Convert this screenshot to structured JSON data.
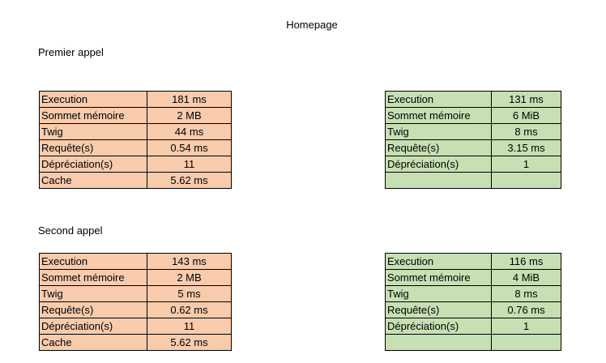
{
  "title": "Homepage",
  "sections": [
    {
      "heading": "Premier appel",
      "left_table": [
        {
          "label": "Execution",
          "value": "181 ms"
        },
        {
          "label": "Sommet mémoire",
          "value": "2 MB"
        },
        {
          "label": "Twig",
          "value": "44 ms"
        },
        {
          "label": "Requête(s)",
          "value": "0.54 ms"
        },
        {
          "label": "Dépréciation(s)",
          "value": "11"
        },
        {
          "label": "Cache",
          "value": "5.62 ms"
        }
      ],
      "right_table": [
        {
          "label": "Execution",
          "value": "131 ms"
        },
        {
          "label": "Sommet mémoire",
          "value": "6 MiB"
        },
        {
          "label": "Twig",
          "value": "8 ms"
        },
        {
          "label": "Requête(s)",
          "value": "3.15 ms"
        },
        {
          "label": "Dépréciation(s)",
          "value": "1"
        },
        {
          "label": "",
          "value": ""
        }
      ]
    },
    {
      "heading": "Second appel",
      "left_table": [
        {
          "label": "Execution",
          "value": "143 ms"
        },
        {
          "label": "Sommet mémoire",
          "value": "2 MB"
        },
        {
          "label": "Twig",
          "value": "5 ms"
        },
        {
          "label": "Requête(s)",
          "value": "0.62 ms"
        },
        {
          "label": "Dépréciation(s)",
          "value": "11"
        },
        {
          "label": "Cache",
          "value": "5.62 ms"
        }
      ],
      "right_table": [
        {
          "label": "Execution",
          "value": "116 ms"
        },
        {
          "label": "Sommet mémoire",
          "value": "4 MiB"
        },
        {
          "label": "Twig",
          "value": "8 ms"
        },
        {
          "label": "Requête(s)",
          "value": "0.76 ms"
        },
        {
          "label": "Dépréciation(s)",
          "value": "1"
        },
        {
          "label": "",
          "value": ""
        }
      ]
    }
  ],
  "colors": {
    "left_fill": "#f8cbad",
    "right_fill": "#c6e0b4",
    "border": "#000000"
  }
}
